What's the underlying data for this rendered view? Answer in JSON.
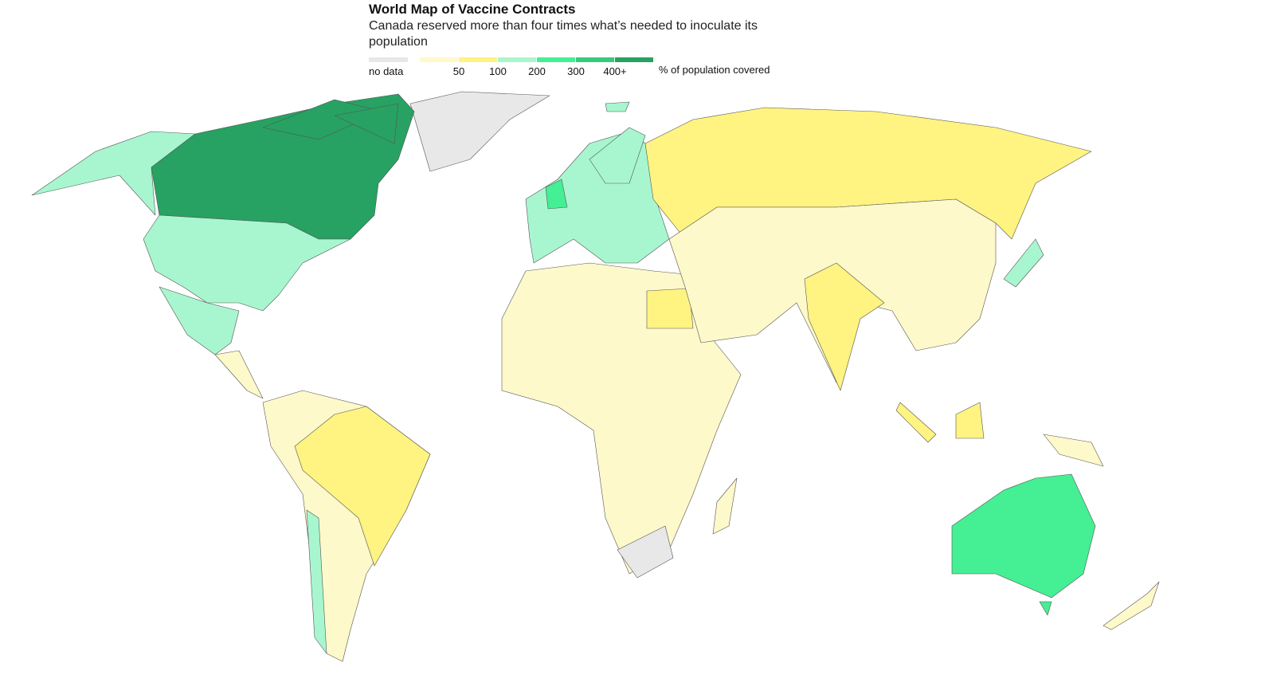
{
  "header": {
    "title": "World Map of Vaccine Contracts",
    "subtitle": "Canada reserved more than four times what’s needed to inoculate its population"
  },
  "legend": {
    "no_data": {
      "label": "no data",
      "color": "#e8e8e8"
    },
    "colors": [
      "#fef9ca",
      "#fff382",
      "#a8f6cf",
      "#45ef93",
      "#34cc7a",
      "#27a262"
    ],
    "breaks": [
      "50",
      "100",
      "200",
      "300",
      "400+"
    ],
    "unit": "% of population covered"
  }
}
